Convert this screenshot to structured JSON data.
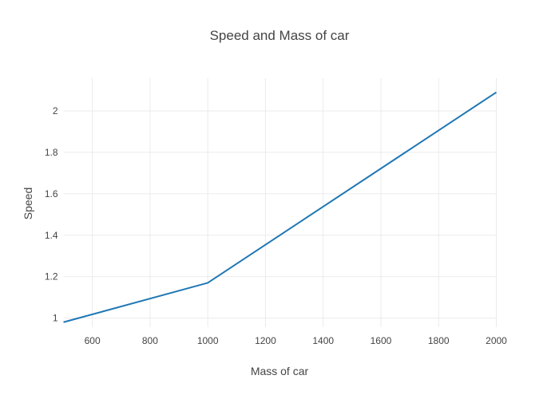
{
  "colors": {
    "line": "#1f77b4",
    "grid": "#ebebeb",
    "text": "#444444",
    "background": "#ffffff"
  },
  "chart_data": {
    "type": "line",
    "title": "Speed and Mass of car",
    "xlabel": "Mass of car",
    "ylabel": "Speed",
    "x": [
      500,
      1000,
      2000
    ],
    "y": [
      0.98,
      1.17,
      2.09
    ],
    "xlim": [
      500,
      2000
    ],
    "ylim": [
      0.956,
      2.158
    ],
    "xticks": [
      600,
      800,
      1000,
      1200,
      1400,
      1600,
      1800,
      2000
    ],
    "xtick_labels": [
      "600",
      "800",
      "1000",
      "1200",
      "1400",
      "1600",
      "1800",
      "2000"
    ],
    "yticks": [
      1,
      1.2,
      1.4,
      1.6,
      1.8,
      2
    ],
    "ytick_labels": [
      "1",
      "1.2",
      "1.4",
      "1.6",
      "1.8",
      "2"
    ],
    "grid": true,
    "legend": false
  }
}
